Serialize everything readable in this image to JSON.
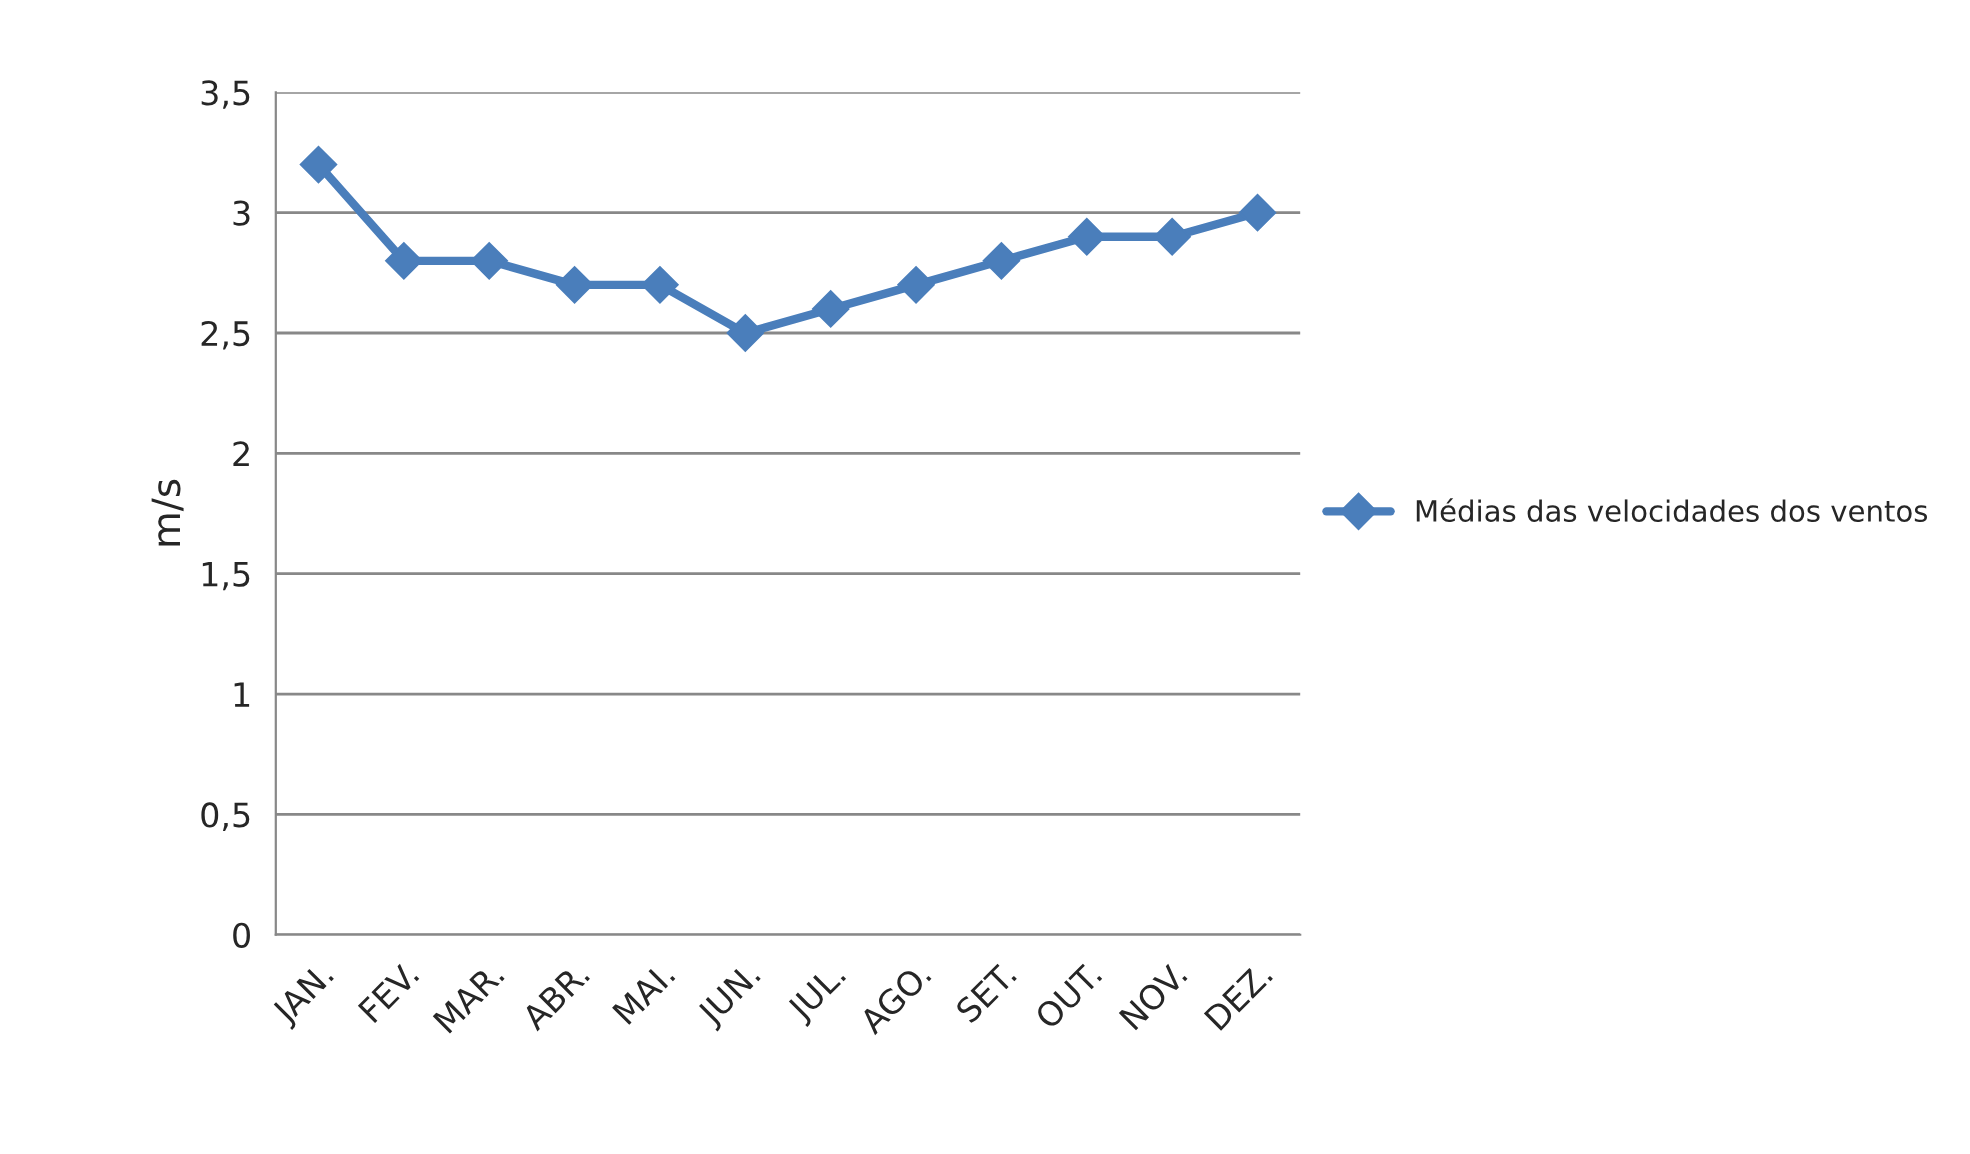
{
  "chart_data": {
    "type": "line",
    "ylabel": "m/s",
    "categories": [
      "JAN.",
      "FEV.",
      "MAR.",
      "ABR.",
      "MAI.",
      "JUN.",
      "JUL.",
      "AGO.",
      "SET.",
      "OUT.",
      "NOV.",
      "DEZ."
    ],
    "series": [
      {
        "name": "Médias das velocidades dos ventos",
        "color": "#4a7ebb",
        "values": [
          3.2,
          2.8,
          2.8,
          2.7,
          2.7,
          2.5,
          2.6,
          2.7,
          2.8,
          2.9,
          2.9,
          3.0
        ]
      }
    ],
    "ylim": [
      0,
      3.5
    ],
    "yticks": [
      0,
      {
        "value": 0.5,
        "label": "0,5"
      },
      1,
      {
        "value": 1.5,
        "label": "1,5"
      },
      2,
      {
        "value": 2.5,
        "label": "2,5"
      },
      3,
      {
        "value": 3.5,
        "label": "3,5"
      }
    ],
    "grid": "y",
    "legend": "right",
    "marker": "diamond",
    "line_style": "solid"
  }
}
